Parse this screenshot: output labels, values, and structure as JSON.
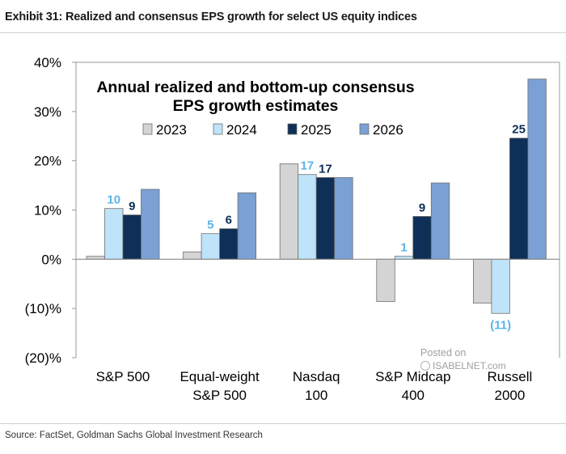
{
  "header": {
    "exhibit_title": "Exhibit 31: Realized and consensus EPS growth for select US equity indices"
  },
  "footer": {
    "source": "Source: FactSet, Goldman Sachs Global Investment Research"
  },
  "watermark": {
    "line1": "Posted on",
    "line2": "ISABELNET.com"
  },
  "colors": {
    "s2023": "#d4d4d4",
    "s2024": "#bfe3f8",
    "s2025": "#0e2f57",
    "s2026": "#7aa0d4",
    "label2024": "#5bb4e6",
    "label2025": "#0e2f57"
  },
  "chart_data": {
    "type": "bar",
    "title": "Annual realized and bottom-up consensus EPS growth estimates",
    "title_lines": [
      "Annual realized and bottom-up consensus",
      "EPS growth estimates"
    ],
    "ylim": [
      -20,
      40
    ],
    "yticks": [
      -20,
      -10,
      0,
      10,
      20,
      30,
      40
    ],
    "ytick_labels": [
      "(20)%",
      "(10)%",
      "0%",
      "10%",
      "20%",
      "30%",
      "40%"
    ],
    "legend": "top-center",
    "categories": [
      [
        "S&P 500"
      ],
      [
        "Equal-weight",
        "S&P 500"
      ],
      [
        "Nasdaq",
        "100"
      ],
      [
        "S&P Midcap",
        "400"
      ],
      [
        "Russell",
        "2000"
      ]
    ],
    "series": [
      {
        "name": "2023",
        "values": [
          0.6,
          1.5,
          19.4,
          -8.6,
          -8.9
        ]
      },
      {
        "name": "2024",
        "values": [
          10.3,
          5.2,
          17.2,
          0.6,
          -11.0
        ]
      },
      {
        "name": "2025",
        "values": [
          9.0,
          6.2,
          16.6,
          8.7,
          24.6
        ]
      },
      {
        "name": "2026",
        "values": [
          14.2,
          13.5,
          16.6,
          15.5,
          36.6
        ]
      }
    ],
    "data_labels": {
      "2024": [
        "10",
        "5",
        "17",
        "1",
        "(11)"
      ],
      "2025": [
        "9",
        "6",
        "17",
        "9",
        "25"
      ]
    }
  }
}
